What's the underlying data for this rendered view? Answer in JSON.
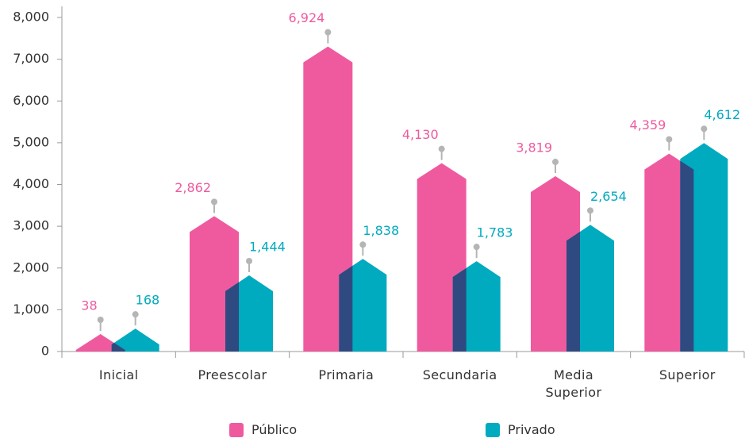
{
  "chart_data": {
    "type": "bar",
    "categories": [
      "Inicial",
      "Preescolar",
      "Primaria",
      "Secundaria",
      "Media Superior",
      "Superior"
    ],
    "series": [
      {
        "name": "Público",
        "color": "#ef5a9f",
        "values": [
          38,
          2862,
          6924,
          4130,
          3819,
          4359
        ]
      },
      {
        "name": "Privado",
        "color": "#00aabf",
        "values": [
          168,
          1444,
          1838,
          1783,
          2654,
          4612
        ]
      }
    ],
    "value_labels": [
      [
        "38",
        "2,862",
        "6,924",
        "4,130",
        "3,819",
        "4,359"
      ],
      [
        "168",
        "1,444",
        "1,838",
        "1,783",
        "2,654",
        "4,612"
      ]
    ],
    "ylim": [
      0,
      8000
    ],
    "yticks": [
      0,
      {
        "value": 1000,
        "label": "1,000"
      },
      {
        "value": 2000,
        "label": "2,000"
      },
      {
        "value": 3000,
        "label": "3,000"
      },
      {
        "value": 4000,
        "label": "4,000"
      },
      {
        "value": 5000,
        "label": "5,000"
      },
      {
        "value": 6000,
        "label": "6,000"
      },
      {
        "value": 7000,
        "label": "7,000"
      },
      {
        "value": 8000,
        "label": "8,000"
      }
    ],
    "overlap_color": "#2e4a80"
  }
}
